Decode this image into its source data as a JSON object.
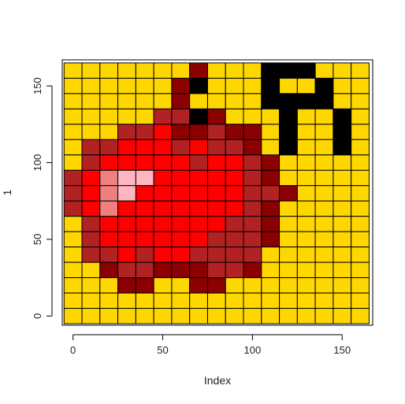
{
  "chart_data": {
    "type": "heatmap",
    "title": "",
    "xlabel": "Index",
    "ylabel": "1",
    "xlim": [
      -6,
      167
    ],
    "ylim": [
      -6,
      167
    ],
    "cell_size": 10,
    "x_ticks": [
      0,
      50,
      100,
      150
    ],
    "y_ticks": [
      0,
      50,
      100,
      150
    ],
    "grid": true,
    "palette": {
      "Y": "#FFD700",
      "K": "#000000",
      "D": "#8B0000",
      "B": "#B22222",
      "R": "#FF0000",
      "L": "#FFB6C1",
      "S": "#F08080",
      "W": "#FFFFFF"
    },
    "rows": [
      "WWWWWWWWWWWWWWWWW",
      "WYYYYYYDYYYKKKYW",
      "WYYYYYYDKYYKYYKW",
      "WYYYYYDYYYYKYYKW",
      "WYYYYBBKDYYKKKYW",
      "WYYBBRDDBDDKYYKW",
      "WYBRRRRBRBBDKYYKW",
      "WYBRRSLLRRRBDYYYW",
      "WBRSLLRRRRRBBDYYYW",
      "WBRSLRRRRRRRBDYYYW",
      "WBRSRRRRRRRBBDYYYW",
      "WYBRRRRRRRBBBYYYYW",
      "WYBRRRRRRBBBDYYYYW",
      "WYBBRBRRBBBBYYYYW",
      "WYYDBBDDDBBDYYYYYW",
      "WYYYDDYYDDYYYYYYW",
      "WWWWWWWWWWWWWWWWW"
    ],
    "grid_rows": [
      "WWWWWWWWWWWWWWWWW",
      "WYYYYYYYDYYYKKKYW",
      "WYYYYYYDKYYYKYYKW",
      "WYYYYYYDYYYYKKKKW",
      "WYYYYYBBKDYYYKYYKW",
      "WYYYBBRDDBDDYKYYKW",
      "WYBRRRRBRRBDYYYYW",
      "WYBRRSLLRRRBDYYYW",
      "WBRSLLRRRRRBDYYYW",
      "WBRSLRRRRRRBBDYYYW",
      "WBRSRRRRRRRBDYYYW",
      "WYBRRRRRRRBBDYYYW",
      "WYBRRRRRRBBBDYYYW",
      "WYBBRBRRBBBBYYYYW",
      "WYYDBBDDDBBDYYYYW",
      "WYYYDDYYDDYYYYYYW",
      "WWWWWWWWWWWWWWWWW"
    ],
    "cells": [
      "WWWWWWWWWWWWWWWWW",
      "WYYYYYYYDYYYKKKYW",
      "WYYYYYYDKYYYKYYKW",
      "WYYYYYYDYYYYKKKKW",
      "WYYYYYBBKDYYYKYYKW",
      "WYYYBBRDDBDDYKYYKW",
      "WYBRRRRBRRBDYYYYW",
      "WYBRRSLLRRRBDYYYW",
      "WBRSLLRRRRRBDYYYW",
      "WBRSLRRRRRRBBDYYYW",
      "WBRSRRRRRRRBDYYYW",
      "WYBRRRRRRRBBDYYYW",
      "WYBRRRRRRBBBDYYYW",
      "WYBBRBRRBBBBYYYYW",
      "WYYDBBDDDBBDYYYYW",
      "WYYYDDYYDDYYYYYYW",
      "WWWWWWWWWWWWWWWWW"
    ],
    "matrix": [
      "WWWWWWWWWWWWWWWWW",
      "WYYYYYYYDYYYKKKYW",
      "WYYYYYYDKYYYKYYKW",
      "WYYYYYYDYYYYKKKKW",
      "WYYYYYBBKDYYYKYYKW",
      "WYYBBRDDBDDYKYYKW",
      "WYBRRRRBRRBDYYYYW",
      "WYBRRSLLRRRBDYYYW",
      "WBRSLLRRRRRBDYYYW",
      "WBRSLRRRRRRBBDYYYW",
      "WBRSRRRRRRRBDYYYW",
      "WYBRRRRRRRBBDYYYW",
      "WYBRRRRRRBBBDYYYW",
      "WYBBRBRRBBBBYYYYW",
      "WYYDBBDDDBBDYYYYW",
      "WYYYDDYYDDYYYYYYW",
      "WWWWWWWWWWWWWWWWW"
    ],
    "image": [
      "WWWWWWWWWWWWWWWWW",
      "WYYYYYYYDYYYKKKYW",
      "WYYYYYYDKYYYKYYKW",
      "WYYYYYYDYYYYKKKKW",
      "WYYYYYBBKDYYYKYYKW",
      "WYYYBBRDDBDDYKYYKW",
      "WYBRRRRBRRBDYYYYW",
      "WYBRRSLLRRRBDYYYW",
      "WBRSLLRRRRRBDYYYW",
      "WBRSLRRRRRRBBDYYYW",
      "WBRSRRRRRRRBDYYYW",
      "WYBRRRRRRRBBDYYYW",
      "WYBRRRRRRBBBDYYYW",
      "WYBBRBRRBBBBYYYYW",
      "WYYDBBDDDBBDYYYYW",
      "WYYYDDYYDDYYYYYYW",
      "WWWWWWWWWWWWWWWWW"
    ],
    "pixels": [
      "WWWWWWWWWWWWWWWWW",
      "WYYYYYYYDYYYKKKYW",
      "WYYYYYYDKYYYKYYKW",
      "WYYYYYYDYYYYKKKKW",
      "WYYYYYBBKDYYYKYYKW",
      "WYYYBBRDDBDDYKYYKW",
      "WYBRRRRBRRBDYYYYW",
      "WYBRRSLLRRRBDYYYW",
      "WBRSLLRRRRRBDYYYW",
      "WBRSLRRRRRRBBDYYYW",
      "WBRSRRRRRRRBDYYYW",
      "WYBRRRRRRRBBDYYYW",
      "WYBRRRRRRBBBDYYYW",
      "WYBBRBRRBBBBYYYYW",
      "WYYDBBDDDBBDYYYYW",
      "WYYYDDYYDDYYYYYYW",
      "WWWWWWWWWWWWWWWWW"
    ],
    "z": [
      "WWWWWWWWWWWWWWWWW",
      "WYYYYYYYDYYYKKKYW",
      "WYYYYYYDKYYYKYYKW",
      "WYYYYYYDYYYYKYYKW",
      "WYYYYYBBKDYYYKKKYW",
      "WYYYBBRDDBDDYKYYKW",
      "WYBBRRRBRBBDYKYYKW",
      "WYBRRSLLRRBDYYYYW",
      "WBRSLLRRRRBBDYYYW",
      "WBRSLRRRRRRBDYYYW",
      "WBRSRRRRRRRBDYYYW",
      "WYBRRRRRRRBBDYYYW",
      "WYBRRRRRRBBBDYYYW",
      "WYBBRBRRBBBBYYYYW",
      "WYYDBBDDDBBDYYYYW",
      "WYYYDDYYDDYYYYYYW",
      "WWWWWWWWWWWWWWWWW"
    ],
    "values": [
      "WWWWWWWWWWWWWWWWW",
      "WYYYYYYYDYYYKKKYW",
      "WYYYYYYDKYYYKYYKW",
      "WYYYYYYDYYYYKYYKW",
      "WYYYYYYBBKDYYKKKYW",
      "WYYYYBBRDDBDDYKYYKW",
      "WYYBBRRRBRBBDYKYYKW",
      "WYYBRRSLLRRBDYYYYW",
      "WYBRSLLRRRRBBDYYYW",
      "WYBRSLRRRRRRBDYYYW",
      "WYBRSRRRRRRRBDYYYW",
      "WYYBRRRRRRRBBDYYYW",
      "WYYBRRRRRRBBBDYYYW",
      "WYYBBRBRRBBBBYYYYW",
      "WYYYDBBDDDBBDYYYYW",
      "WYYYYDDYYDDYYYYYYW",
      "WWWWWWWWWWWWWWWWW"
    ],
    "grid_colors": [
      "WWWWWWWWWWWWWWWWWW",
      "WYYYYYYYDYYYKKKYYW",
      "WYYYYYYDKYYYKYYKYW",
      "WYYYYYYDYYYYKKKKYW",
      "WYYYYYBBKDYYYKYYKW",
      "WYYYBBRDDBDDYKYYKW",
      "WYBRRRRBRRBDYKYYKW",
      "WYBRRSLLRRRBDYYYYW",
      "WBRSLLRRRRRBDYYYYW",
      "WBRSLRRRRRRBBDYYYW",
      "WBRSRRRRRRRBDYYYYW",
      "WYBRRRRRRRBBDYYYYW",
      "WYBRRRRRRBBBDYYYYW",
      "WYBBRBRRBBBBYYYYYW",
      "WYYDBBDDDBBDYYYYYW",
      "WYYYDDYYDDYYYYYYYW",
      "WWWWWWWWWWWWWWWWWW"
    ],
    "color_matrix": [
      "WWWWWWWWWWWWWWWWW",
      "WYYYYYYDYYYKKKYYW",
      "WYYYYYYDKYYKYYKYW",
      "WYYYYYDYYYYKKKKYW",
      "WYYYYBBKDYYYKYYKW",
      "WYYBBRDDBDDYKYYKW",
      "WYBRRRBRRBDYYYYYW",
      "WYBRSLLRRRBDYYYYW",
      "WBRSLLRRRRBDYYYYW",
      "WBRSLRRRRRBBDYYYW",
      "WBRSRRRRRRBDYYYYW",
      "WYBRRRRRRBBDYYYYW",
      "WYBRRRRRBBBDYYYYW",
      "WYBBRBRRBBBYYYYYW",
      "WYYDBBDDDBBDYYYYW",
      "WYYYDDYYDDYYYYYYW",
      "WWWWWWWWWWWWWWWWW"
    ]
  }
}
